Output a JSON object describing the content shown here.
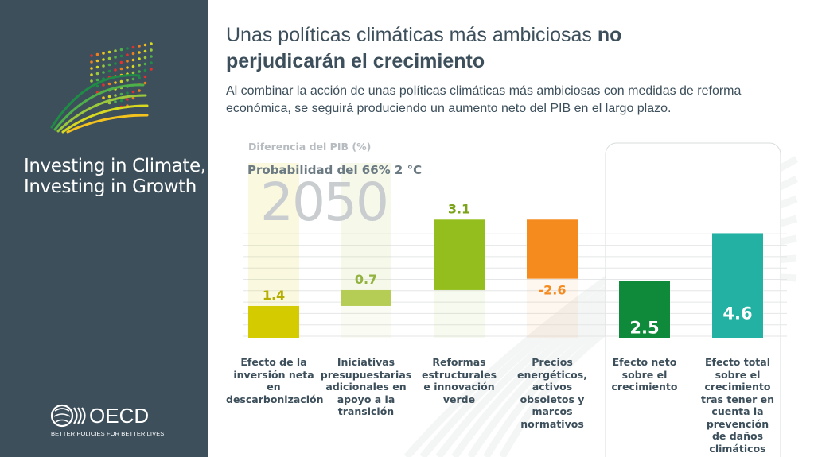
{
  "sidebar": {
    "brand_line1": "Investing in Climate,",
    "brand_line2": "Investing in Growth",
    "org_name": "OECD",
    "org_tagline": "BETTER POLICIES FOR BETTER LIVES",
    "background": "#3c4f5b"
  },
  "header": {
    "title_regular": "Unas políticas climáticas más ambiciosas",
    "title_bold_1": "no",
    "title_bold_2": "perjudicarán el crecimiento",
    "subtitle": "Al combinar la acción de unas políticas climáticas más ambiciosas con medidas de reforma económica, se seguirá produciendo un aumento neto del PIB en el largo plazo."
  },
  "chart_data": {
    "type": "bar",
    "subtype": "waterfall",
    "ylabel": "Diferencia del PIB (%)",
    "scenario": "Probabilidad del 66% 2 °C",
    "year": "2050",
    "categories": [
      "Efecto de la inversión neta en descarbonización",
      "Iniciativas presupuestarias adicionales en apoyo a la transición",
      "Reformas estructurales e innovación verde",
      "Precios energéticos, activos obsoletos y marcos normativos",
      "Efecto neto sobre el crecimiento",
      "Efecto total sobre el crecimiento tras tener en cuenta la prevención de daños climáticos"
    ],
    "category_lines": [
      [
        "Efecto de la",
        "inversión neta",
        "en",
        "descarbonización"
      ],
      [
        "Iniciativas",
        "presupuestarias",
        "adicionales en",
        "apoyo a la",
        "transición"
      ],
      [
        "Reformas",
        "estructurales",
        "e innovación",
        "verde"
      ],
      [
        "Precios",
        "energéticos,",
        "activos",
        "obsoletos y",
        "marcos",
        "normativos"
      ],
      [
        "Efecto neto",
        "sobre el",
        "crecimiento"
      ],
      [
        "Efecto total",
        "sobre el",
        "crecimiento",
        "tras tener en",
        "cuenta la",
        "prevención",
        "de daños",
        "climáticos"
      ]
    ],
    "values": [
      1.4,
      0.7,
      3.1,
      -2.6,
      2.5,
      4.6
    ],
    "value_labels": [
      "1.4",
      "0.7",
      "3.1",
      "-2.6",
      "2.5",
      "4.6"
    ],
    "bar_kinds": [
      "step",
      "step",
      "step",
      "step",
      "total",
      "total"
    ],
    "colors": [
      "#d4cc00",
      "#b5cc55",
      "#93be1e",
      "#f58a1f",
      "#0f8a3a",
      "#22b1a2"
    ],
    "label_colors": [
      "#b5ad00",
      "#93b340",
      "#7aa319",
      "#f58a1f",
      "#ffffff",
      "#ffffff"
    ],
    "label_inside": [
      false,
      false,
      false,
      false,
      true,
      true
    ],
    "ylim": [
      0,
      5.4
    ],
    "grid": true,
    "highlight_group": [
      4,
      5
    ]
  }
}
